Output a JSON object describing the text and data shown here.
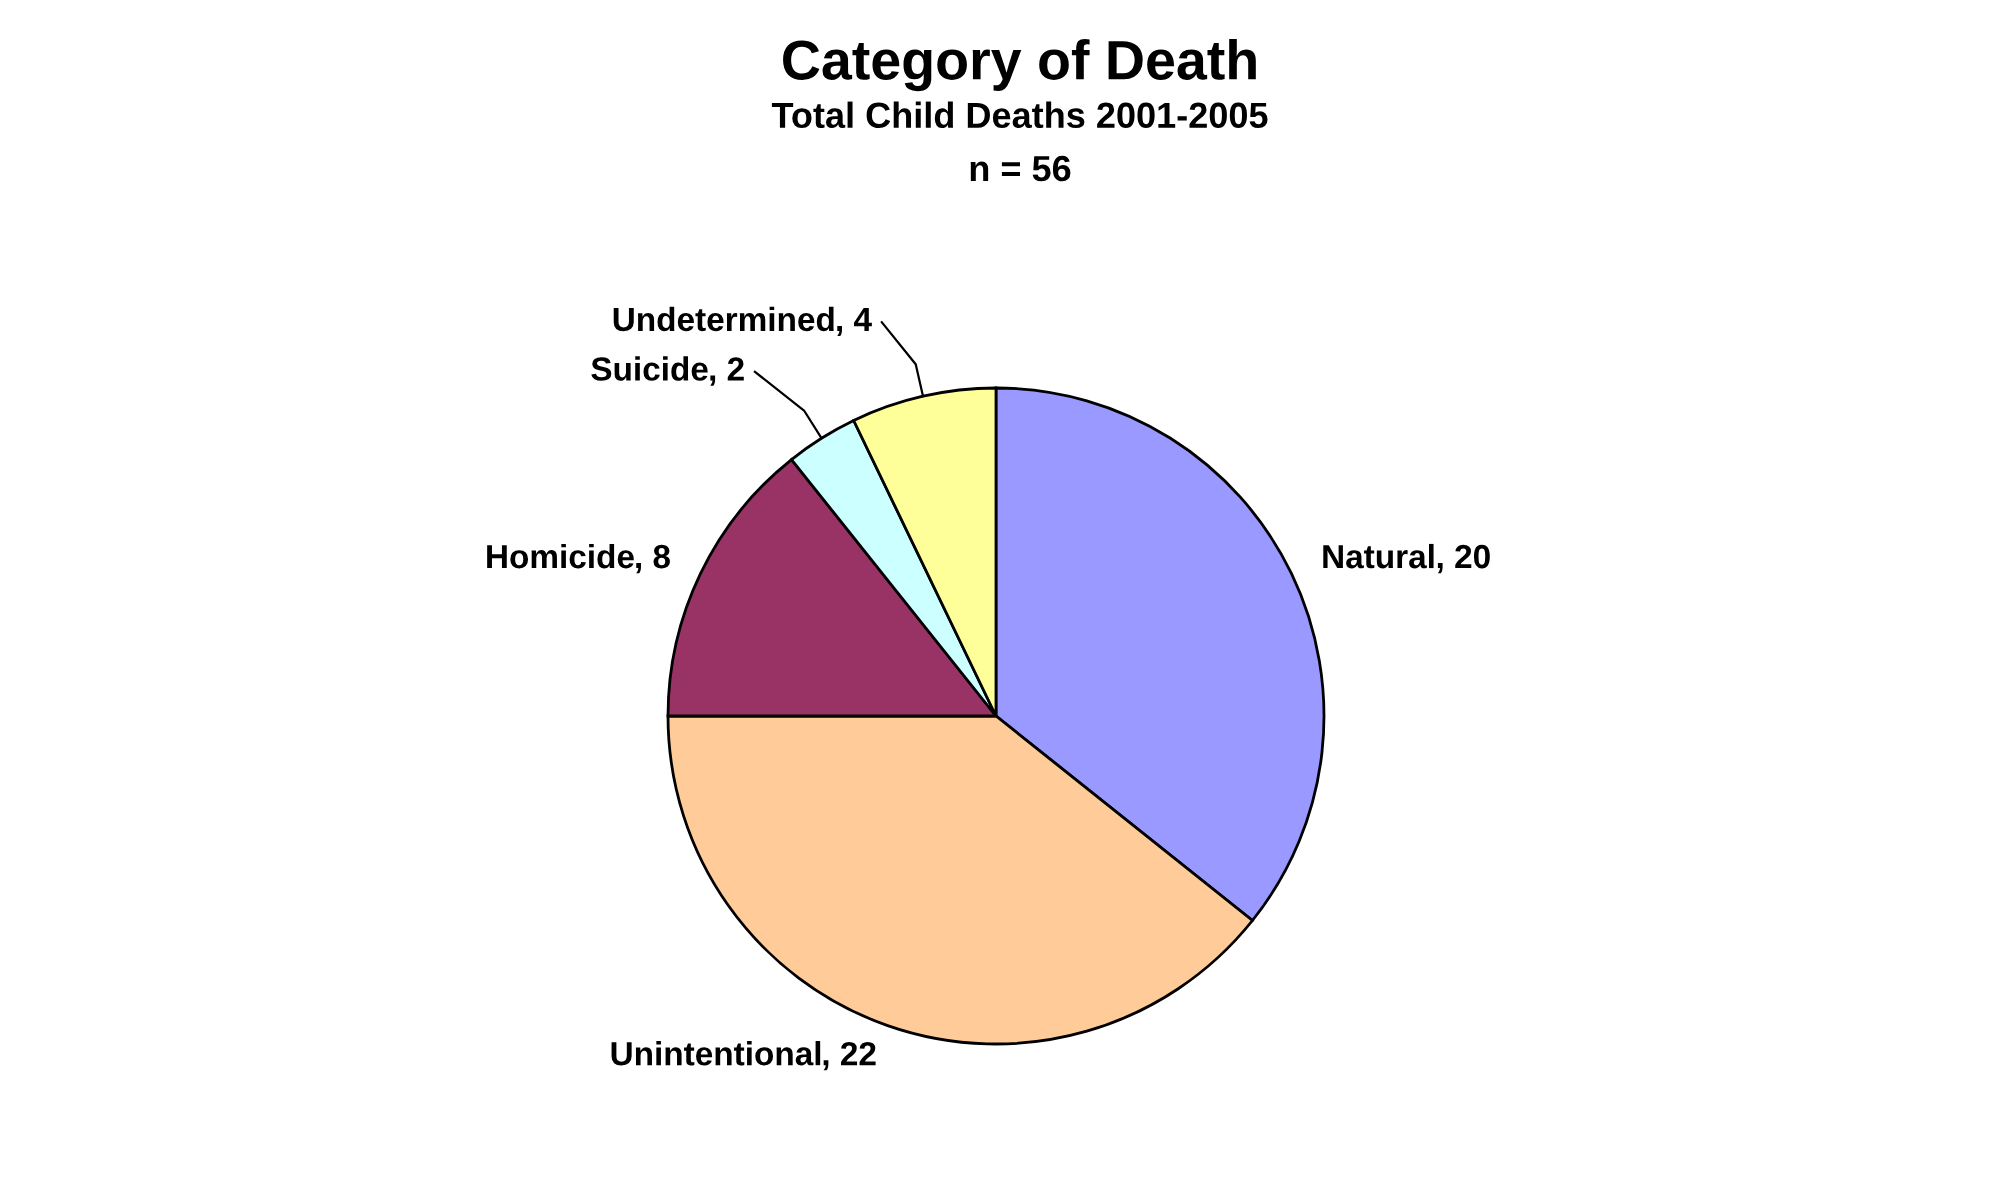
{
  "chart_data": {
    "type": "pie",
    "title": "Category of Death",
    "subtitle": "Total Child Deaths 2001-2005",
    "annotations": [
      "n = 56"
    ],
    "categories": [
      "Natural",
      "Unintentional",
      "Homicide",
      "Suicide",
      "Undetermined"
    ],
    "values": [
      20,
      22,
      8,
      2,
      4
    ],
    "colors": [
      "#9999ff",
      "#ffcc99",
      "#993366",
      "#ccffff",
      "#ffff99"
    ],
    "value_labels": [
      ", 20",
      ", 22",
      ", 8",
      ", 2",
      ", 4"
    ],
    "legend": false
  }
}
